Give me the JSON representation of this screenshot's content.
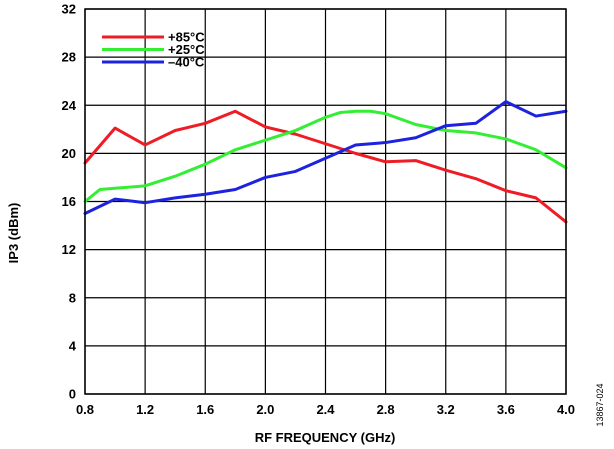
{
  "chart_data": {
    "type": "line",
    "xlabel": "RF FREQUENCY (GHz)",
    "ylabel": "IP3 (dBm)",
    "xlim": [
      0.8,
      4.0
    ],
    "ylim": [
      0,
      32
    ],
    "xticks": [
      "0.8",
      "1.2",
      "1.6",
      "2.0",
      "2.4",
      "2.8",
      "3.2",
      "3.6",
      "4.0"
    ],
    "yticks": [
      "0",
      "4",
      "8",
      "12",
      "16",
      "20",
      "24",
      "28",
      "32"
    ],
    "grid": true,
    "legend_position": "top-left",
    "figure_id": "13867-024",
    "series": [
      {
        "name": "+85°C",
        "color": "#ee1c25",
        "x": [
          0.8,
          1.0,
          1.2,
          1.4,
          1.6,
          1.8,
          2.0,
          2.2,
          2.4,
          2.6,
          2.8,
          3.0,
          3.2,
          3.4,
          3.6,
          3.8,
          4.0
        ],
        "y": [
          19.2,
          22.1,
          20.7,
          21.9,
          22.5,
          23.5,
          22.2,
          21.6,
          20.8,
          20.0,
          19.3,
          19.4,
          18.6,
          17.9,
          16.9,
          16.3,
          14.3
        ]
      },
      {
        "name": "+25°C",
        "color": "#33ee33",
        "x": [
          0.8,
          0.9,
          1.0,
          1.1,
          1.2,
          1.4,
          1.6,
          1.8,
          2.0,
          2.2,
          2.4,
          2.5,
          2.6,
          2.7,
          2.8,
          3.0,
          3.2,
          3.4,
          3.6,
          3.8,
          4.0
        ],
        "y": [
          16.0,
          17.0,
          17.1,
          17.2,
          17.3,
          18.1,
          19.1,
          20.3,
          21.1,
          21.9,
          23.0,
          23.4,
          23.5,
          23.5,
          23.3,
          22.4,
          21.9,
          21.7,
          21.2,
          20.3,
          18.8
        ]
      },
      {
        "name": "–40°C",
        "color": "#1c22dd",
        "x": [
          0.8,
          1.0,
          1.2,
          1.4,
          1.6,
          1.8,
          2.0,
          2.2,
          2.4,
          2.6,
          2.8,
          3.0,
          3.2,
          3.4,
          3.6,
          3.8,
          4.0
        ],
        "y": [
          15.0,
          16.2,
          15.9,
          16.3,
          16.6,
          17.0,
          18.0,
          18.5,
          19.6,
          20.7,
          20.9,
          21.3,
          22.3,
          22.5,
          24.3,
          23.1,
          23.5
        ]
      }
    ]
  }
}
